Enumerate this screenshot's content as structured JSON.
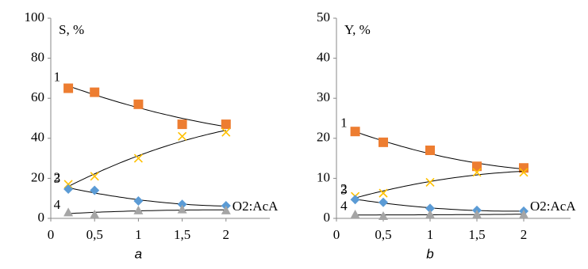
{
  "chart_data": [
    {
      "type": "scatter",
      "y_label": "S, %",
      "x_label": "a",
      "annotation": "O2:AcA",
      "x": [
        0.2,
        0.5,
        1,
        1.5,
        2
      ],
      "xlim": [
        0,
        2.5
      ],
      "xticks": [
        0,
        {
          "value": 0.5,
          "label": "0,5"
        },
        1,
        {
          "value": 1.5,
          "label": "1,5"
        },
        2
      ],
      "ylim": [
        0,
        100
      ],
      "yticks": [
        0,
        20,
        40,
        60,
        80,
        100
      ],
      "series": [
        {
          "name": "1",
          "color": "#ed7d31",
          "marker": "square",
          "values": [
            65,
            63,
            57,
            47,
            47
          ]
        },
        {
          "name": "2",
          "color": "#ffc000",
          "marker": "x",
          "values": [
            17,
            21,
            30,
            41,
            43
          ]
        },
        {
          "name": "3",
          "color": "#5b9bd5",
          "marker": "diamond",
          "values": [
            14.6,
            14,
            8.7,
            7,
            6.3
          ]
        },
        {
          "name": "4",
          "color": "#a5a5a5",
          "marker": "triangle",
          "values": [
            3,
            2,
            4,
            4.5,
            4
          ]
        }
      ]
    },
    {
      "type": "scatter",
      "y_label": "Y, %",
      "x_label": "b",
      "annotation": "O2:AcA",
      "x": [
        0.2,
        0.5,
        1,
        1.5,
        2
      ],
      "xlim": [
        0,
        2.5
      ],
      "xticks": [
        0,
        {
          "value": 0.5,
          "label": "0,5"
        },
        1,
        {
          "value": 1.5,
          "label": "1,5"
        },
        2
      ],
      "ylim": [
        0,
        50
      ],
      "yticks": [
        0,
        10,
        20,
        30,
        40,
        50
      ],
      "series": [
        {
          "name": "1",
          "color": "#ed7d31",
          "marker": "square",
          "values": [
            21.7,
            19,
            17,
            13,
            12.6
          ]
        },
        {
          "name": "2",
          "color": "#ffc000",
          "marker": "x",
          "values": [
            5.5,
            6.3,
            9,
            11.5,
            11.5
          ]
        },
        {
          "name": "3",
          "color": "#5b9bd5",
          "marker": "diamond",
          "values": [
            4.7,
            4,
            2.5,
            2,
            1.8
          ]
        },
        {
          "name": "4",
          "color": "#a5a5a5",
          "marker": "triangle",
          "values": [
            1,
            0.6,
            1,
            1,
            1
          ]
        }
      ]
    }
  ]
}
